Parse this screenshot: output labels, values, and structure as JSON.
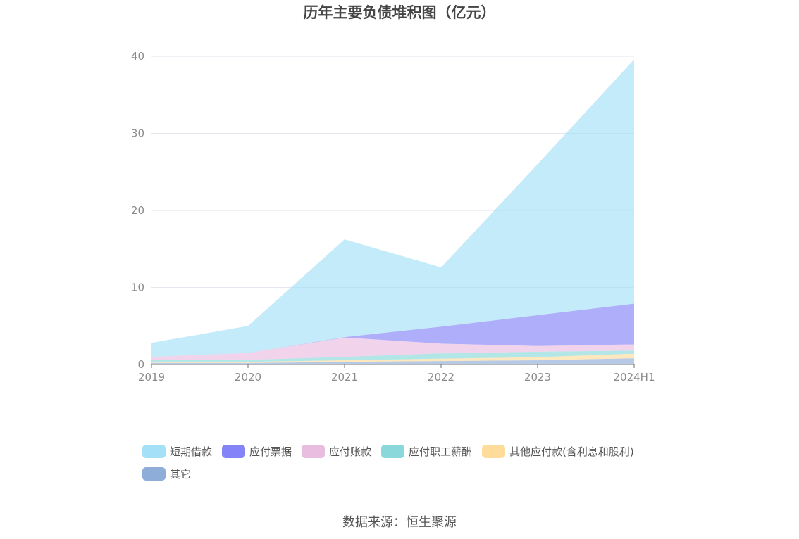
{
  "source_text": "数据来源：恒生聚源",
  "chart_data": {
    "type": "area",
    "stacked": true,
    "title": "历年主要负债堆积图（亿元）",
    "categories": [
      "2019",
      "2020",
      "2021",
      "2022",
      "2023",
      "2024H1"
    ],
    "ylim": [
      0,
      40
    ],
    "yticks": [
      0,
      10,
      20,
      30,
      40
    ],
    "grid": true,
    "legend_position": "bottom",
    "series": [
      {
        "name": "其它",
        "color": "#8fadd9",
        "values": [
          0.2,
          0.2,
          0.35,
          0.45,
          0.55,
          0.8
        ]
      },
      {
        "name": "其他应付款(含利息和股利)",
        "color": "#ffdc99",
        "values": [
          0.15,
          0.15,
          0.2,
          0.3,
          0.4,
          0.6
        ]
      },
      {
        "name": "应付职工薪酬",
        "color": "#8bd8da",
        "values": [
          0.2,
          0.25,
          0.45,
          0.7,
          0.7,
          0.4
        ]
      },
      {
        "name": "应付账款",
        "color": "#e9bde0",
        "values": [
          0.45,
          0.9,
          2.5,
          1.25,
          0.75,
          0.8
        ]
      },
      {
        "name": "应付票据",
        "color": "#8483f7",
        "values": [
          0.0,
          0.0,
          0.05,
          2.2,
          4.0,
          5.3
        ]
      },
      {
        "name": "短期借款",
        "color": "#a4e0f8",
        "values": [
          1.8,
          3.5,
          12.7,
          7.7,
          19.6,
          31.7
        ]
      }
    ],
    "legend_order": [
      "短期借款",
      "应付票据",
      "应付账款",
      "应付职工薪酬",
      "其他应付款(含利息和股利)",
      "其它"
    ]
  }
}
